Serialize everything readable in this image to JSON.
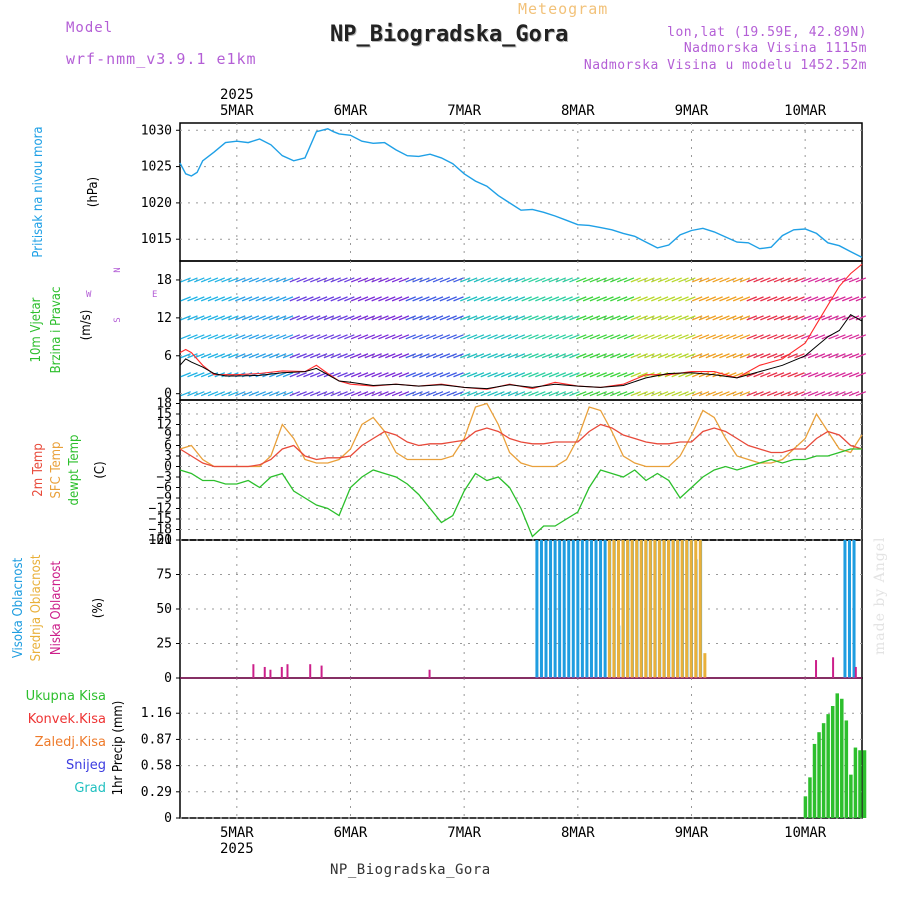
{
  "header": {
    "title": "NP_Biogradska_Gora",
    "subtitle": "Meteogram",
    "model_label": "Model",
    "model_value": "wrf-nmm_v3.9.1  e1km",
    "lonlat": "lon,lat (19.59E, 42.89N)",
    "elevation": "Nadmorska Visina 1115m",
    "model_elevation": "Nadmorska Visina u modelu 1452.52m"
  },
  "footer": {
    "station": "NP_Biogradska_Gora",
    "credit": "made by Angel"
  },
  "time_axis": {
    "year": "2025",
    "day_labels": [
      "5MAR",
      "6MAR",
      "7MAR",
      "8MAR",
      "9MAR",
      "10MAR"
    ],
    "start_offset_days": -0.5,
    "end_offset_days": 5.5
  },
  "colors": {
    "pressure": "#1fa0e6",
    "t2m": "#e84a3a",
    "sfc": "#e9a03a",
    "dewpt": "#2bbf2b",
    "wind_speed": "#000000",
    "gust": "#ff2a2a",
    "high_cloud": "#1f9de0",
    "mid_cloud": "#e9b03a",
    "low_cloud": "#cc1f8a",
    "total_precip": "#2dbf2d",
    "conv_precip": "#ee3333",
    "frozen_precip": "#ee7a2a",
    "snow": "#3b3be0",
    "grad": "#21c0c0"
  },
  "chart_data": [
    {
      "type": "line",
      "title": "",
      "ylabel": "Pritisak na nivou mora",
      "unit": "(hPa)",
      "ylim": [
        1012,
        1031
      ],
      "yticks": [
        1015,
        1020,
        1025,
        1030
      ],
      "series": [
        {
          "x": [
            -0.5,
            -0.45,
            -0.4,
            -0.35,
            -0.3,
            -0.2,
            -0.1,
            0,
            0.1,
            0.2,
            0.3,
            0.4,
            0.5,
            0.6,
            0.7,
            0.8,
            0.85,
            0.9,
            1.0,
            1.1,
            1.2,
            1.3,
            1.4,
            1.5,
            1.6,
            1.7,
            1.8,
            1.9,
            2.0,
            2.1,
            2.2,
            2.3,
            2.4,
            2.5,
            2.6,
            2.7,
            2.8,
            2.9,
            3.0,
            3.1,
            3.2,
            3.3,
            3.4,
            3.5,
            3.6,
            3.7,
            3.8,
            3.9,
            4.0,
            4.1,
            4.2,
            4.3,
            4.4,
            4.5,
            4.6,
            4.7,
            4.8,
            4.9,
            5.0,
            5.1,
            5.2,
            5.3,
            5.4,
            5.5
          ],
          "values": [
            1025.5,
            1024.0,
            1023.7,
            1024.2,
            1025.8,
            1027.0,
            1028.3,
            1028.5,
            1028.3,
            1028.8,
            1028.0,
            1026.5,
            1025.8,
            1026.2,
            1029.8,
            1030.2,
            1029.8,
            1029.5,
            1029.3,
            1028.5,
            1028.2,
            1028.3,
            1027.3,
            1026.5,
            1026.4,
            1026.7,
            1026.2,
            1025.4,
            1024.0,
            1023.0,
            1022.3,
            1021.0,
            1020.0,
            1019.0,
            1019.1,
            1018.7,
            1018.2,
            1017.6,
            1017.0,
            1016.9,
            1016.6,
            1016.3,
            1015.8,
            1015.4,
            1014.6,
            1013.8,
            1014.2,
            1015.6,
            1016.2,
            1016.5,
            1016.0,
            1015.3,
            1014.6,
            1014.5,
            1013.7,
            1013.9,
            1015.5,
            1016.3,
            1016.4,
            1015.8,
            1014.5,
            1014.1,
            1013.3,
            1012.5
          ],
          "name": "",
          "color_key": "pressure"
        }
      ]
    },
    {
      "type": "line",
      "title": "",
      "ylabel": "10m Vjetar Brzina i Pravac",
      "unit": "(m/s)",
      "direction_legend": [
        "N",
        "S",
        "E",
        "W"
      ],
      "ylim": [
        -1,
        21
      ],
      "yticks": [
        0,
        6,
        12,
        18
      ],
      "series": [
        {
          "name": "wind speed",
          "color_key": "wind_speed",
          "x": [
            -0.5,
            -0.45,
            -0.4,
            -0.3,
            -0.2,
            -0.1,
            0,
            0.2,
            0.4,
            0.6,
            0.7,
            0.8,
            0.9,
            1.0,
            1.2,
            1.4,
            1.6,
            1.8,
            2.0,
            2.2,
            2.4,
            2.6,
            2.8,
            3.0,
            3.2,
            3.4,
            3.6,
            3.8,
            4.0,
            4.2,
            4.4,
            4.6,
            4.8,
            5.0,
            5.1,
            5.2,
            5.3,
            5.4,
            5.5
          ],
          "values": [
            4.5,
            5.5,
            5.0,
            4.2,
            3.2,
            2.8,
            2.8,
            2.9,
            3.3,
            3.5,
            4.0,
            3.0,
            2.0,
            1.8,
            1.3,
            1.5,
            1.2,
            1.4,
            1.0,
            0.8,
            1.4,
            1.0,
            1.5,
            1.2,
            1.0,
            1.3,
            2.5,
            3.2,
            3.3,
            3.0,
            2.5,
            3.5,
            4.5,
            6.0,
            7.5,
            9.0,
            10.0,
            12.5,
            11.5
          ]
        },
        {
          "name": "gust",
          "color_key": "gust",
          "x": [
            -0.5,
            -0.45,
            -0.4,
            -0.3,
            -0.2,
            -0.1,
            0,
            0.2,
            0.4,
            0.6,
            0.7,
            0.8,
            0.9,
            1.0,
            1.2,
            1.4,
            1.6,
            1.8,
            2.0,
            2.2,
            2.4,
            2.6,
            2.8,
            3.0,
            3.2,
            3.4,
            3.6,
            3.8,
            4.0,
            4.2,
            4.4,
            4.6,
            4.8,
            5.0,
            5.1,
            5.2,
            5.3,
            5.4,
            5.5
          ],
          "values": [
            6.5,
            7.0,
            6.5,
            4.5,
            3.0,
            3.0,
            3.0,
            3.2,
            3.6,
            3.5,
            4.5,
            3.2,
            2.0,
            1.5,
            1.2,
            1.5,
            1.2,
            1.5,
            1.0,
            0.7,
            1.5,
            0.8,
            1.8,
            1.2,
            1.0,
            1.5,
            3.0,
            3.0,
            3.5,
            3.5,
            2.5,
            4.5,
            5.5,
            8.0,
            11.0,
            14.0,
            17.0,
            19.0,
            20.5
          ]
        }
      ]
    },
    {
      "type": "line",
      "title": "",
      "ylabel": "2m Temp / SFC Temp / dewpt Temp",
      "unit": "(C)",
      "ylim": [
        -21,
        19
      ],
      "yticks": [
        18,
        15,
        12,
        9,
        6,
        3,
        0,
        -3,
        -6,
        -9,
        -12,
        -15,
        -18,
        -21
      ],
      "series": [
        {
          "name": "2m Temp",
          "color_key": "t2m",
          "x": [
            -0.5,
            -0.4,
            -0.3,
            -0.2,
            -0.1,
            0,
            0.1,
            0.2,
            0.3,
            0.4,
            0.5,
            0.6,
            0.7,
            0.8,
            0.9,
            1.0,
            1.1,
            1.2,
            1.3,
            1.4,
            1.5,
            1.6,
            1.7,
            1.8,
            1.9,
            2.0,
            2.1,
            2.2,
            2.3,
            2.4,
            2.5,
            2.6,
            2.7,
            2.8,
            2.9,
            3.0,
            3.1,
            3.2,
            3.3,
            3.4,
            3.5,
            3.6,
            3.7,
            3.8,
            3.9,
            4.0,
            4.1,
            4.2,
            4.3,
            4.4,
            4.5,
            4.6,
            4.7,
            4.8,
            4.9,
            5.0,
            5.1,
            5.2,
            5.3,
            5.4,
            5.5
          ],
          "values": [
            5,
            3,
            1,
            0,
            0,
            0,
            0,
            0.5,
            2,
            5,
            6,
            3,
            2,
            2.5,
            2.5,
            3,
            6,
            8,
            10,
            9,
            7,
            6,
            6.5,
            6.5,
            7,
            7.5,
            10,
            11,
            10,
            8,
            7,
            6.5,
            6.5,
            7,
            7,
            7,
            10,
            12,
            11,
            9,
            8,
            7,
            6.5,
            6.5,
            7,
            7,
            10,
            11,
            10,
            8,
            6,
            5,
            4,
            4,
            5,
            5,
            8,
            10,
            9,
            6,
            5
          ]
        },
        {
          "name": "SFC Temp",
          "color_key": "sfc",
          "x": [
            -0.5,
            -0.4,
            -0.3,
            -0.2,
            -0.1,
            0,
            0.1,
            0.2,
            0.3,
            0.4,
            0.5,
            0.6,
            0.7,
            0.8,
            0.9,
            1.0,
            1.1,
            1.2,
            1.3,
            1.4,
            1.5,
            1.6,
            1.7,
            1.8,
            1.9,
            2.0,
            2.1,
            2.2,
            2.3,
            2.4,
            2.5,
            2.6,
            2.7,
            2.8,
            2.9,
            3.0,
            3.1,
            3.2,
            3.3,
            3.4,
            3.5,
            3.6,
            3.7,
            3.8,
            3.9,
            4.0,
            4.1,
            4.2,
            4.3,
            4.4,
            4.5,
            4.6,
            4.7,
            4.8,
            4.9,
            5.0,
            5.1,
            5.2,
            5.3,
            5.4,
            5.5
          ],
          "values": [
            5,
            6,
            2,
            0,
            0,
            0,
            0,
            0,
            3,
            12,
            8,
            2,
            1,
            1,
            2,
            5,
            12,
            14,
            10,
            4,
            2,
            2,
            2,
            2,
            3,
            8,
            17,
            18,
            12,
            4,
            1,
            0,
            0,
            0,
            2,
            8,
            17,
            16,
            10,
            3,
            1,
            0,
            0,
            0,
            3,
            9,
            16,
            14,
            8,
            3,
            2,
            1,
            1,
            2,
            5,
            8,
            15,
            10,
            5,
            4,
            9
          ]
        },
        {
          "name": "dewpt Temp",
          "color_key": "dewpt",
          "x": [
            -0.5,
            -0.4,
            -0.3,
            -0.2,
            -0.1,
            0,
            0.1,
            0.2,
            0.3,
            0.4,
            0.5,
            0.6,
            0.7,
            0.8,
            0.9,
            1.0,
            1.1,
            1.2,
            1.3,
            1.4,
            1.5,
            1.6,
            1.7,
            1.8,
            1.9,
            2.0,
            2.1,
            2.2,
            2.3,
            2.4,
            2.5,
            2.6,
            2.7,
            2.8,
            2.9,
            3.0,
            3.1,
            3.2,
            3.3,
            3.4,
            3.5,
            3.6,
            3.7,
            3.8,
            3.9,
            4.0,
            4.1,
            4.2,
            4.3,
            4.4,
            4.5,
            4.6,
            4.7,
            4.8,
            4.9,
            5.0,
            5.1,
            5.2,
            5.3,
            5.4,
            5.5
          ],
          "values": [
            -1,
            -2,
            -4,
            -4,
            -5,
            -5,
            -4,
            -6,
            -3,
            -2,
            -7,
            -9,
            -11,
            -12,
            -14,
            -6,
            -3,
            -1,
            -2,
            -3,
            -5,
            -8,
            -12,
            -16,
            -14,
            -7,
            -2,
            -4,
            -3,
            -6,
            -12,
            -20,
            -17,
            -17,
            -15,
            -13,
            -6,
            -1,
            -2,
            -3,
            -1,
            -4,
            -2,
            -4,
            -9,
            -6,
            -3,
            -1,
            0,
            -1,
            0,
            1,
            2,
            1,
            2,
            2,
            3,
            3,
            4,
            5,
            5
          ]
        }
      ]
    },
    {
      "type": "bar",
      "title": "",
      "ylabel": "Visoka Oblacnost / Srednja Oblacnost / Niska Oblacnost",
      "unit": "(%)",
      "ylim": [
        0,
        100
      ],
      "yticks": [
        0,
        25,
        50,
        75,
        100
      ],
      "series": [
        {
          "name": "Visoka Oblacnost",
          "color_key": "high_cloud",
          "x": [
            2.64,
            2.68,
            2.72,
            2.76,
            2.8,
            2.84,
            2.88,
            2.92,
            2.96,
            3.0,
            3.04,
            3.08,
            3.12,
            3.16,
            3.2,
            3.24,
            3.28,
            3.32,
            3.36,
            3.4,
            3.44,
            3.48,
            3.52,
            3.56,
            3.6,
            3.64,
            3.68,
            3.72,
            3.76,
            3.8,
            3.84,
            3.88,
            3.92,
            3.96,
            4.0,
            4.04,
            4.08,
            5.35,
            5.39,
            5.43
          ],
          "values": [
            100,
            100,
            100,
            100,
            100,
            100,
            100,
            100,
            100,
            100,
            100,
            100,
            100,
            100,
            100,
            100,
            100,
            100,
            38,
            100,
            100,
            100,
            100,
            100,
            100,
            100,
            100,
            100,
            100,
            100,
            100,
            100,
            100,
            100,
            100,
            86,
            100,
            100,
            100,
            100
          ]
        },
        {
          "name": "Srednja Oblacnost",
          "color_key": "mid_cloud",
          "x": [
            3.1,
            3.14,
            3.18,
            3.22,
            3.26,
            3.3,
            3.34,
            3.38,
            3.42,
            3.46,
            3.5,
            3.54,
            3.58,
            3.62,
            3.66,
            3.7,
            3.74,
            3.78,
            3.82,
            3.86,
            3.9,
            3.94,
            3.98,
            4.02,
            4.06,
            4.1
          ],
          "values": [
            0,
            0,
            0,
            0,
            100,
            100,
            100,
            100,
            100,
            100,
            100,
            100,
            100,
            100,
            100,
            100,
            100,
            100,
            100,
            100,
            100,
            100,
            100,
            100,
            100,
            18
          ]
        },
        {
          "name": "Niska Oblacnost",
          "color_key": "low_cloud",
          "x": [
            0.15,
            0.25,
            0.3,
            0.4,
            0.45,
            0.65,
            0.75,
            1.7,
            5.1,
            5.25,
            5.45
          ],
          "values": [
            10,
            8,
            6,
            8,
            10,
            10,
            9,
            6,
            13,
            15,
            8
          ]
        }
      ]
    },
    {
      "type": "bar",
      "title": "",
      "ylabel": "1hr Precip",
      "unit": "(mm)",
      "ylim": [
        0,
        1.55
      ],
      "yticks": [
        0,
        0.29,
        0.58,
        0.87,
        1.16
      ],
      "legend": [
        "Ukupna Kisa",
        "Konvek.Kisa",
        "Zaledj.Kisa",
        "Snijeg",
        "Grad"
      ],
      "series": [
        {
          "name": "Ukupna Kisa",
          "color_key": "total_precip",
          "x": [
            5.0,
            5.04,
            5.08,
            5.12,
            5.16,
            5.2,
            5.24,
            5.28,
            5.32,
            5.36,
            5.4,
            5.44,
            5.48,
            5.52
          ],
          "values": [
            0.24,
            0.45,
            0.82,
            0.95,
            1.05,
            1.15,
            1.24,
            1.38,
            1.32,
            1.08,
            0.48,
            0.78,
            0.75,
            0.75
          ]
        }
      ]
    }
  ]
}
